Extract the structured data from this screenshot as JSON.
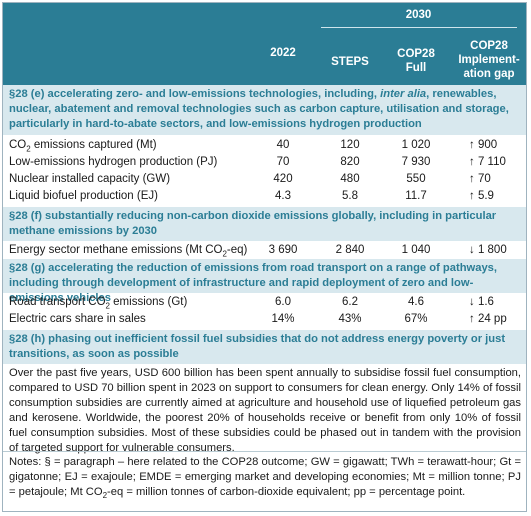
{
  "header": {
    "year_2030": "2030",
    "col_2022": "2022",
    "col_steps": "STEPS",
    "col_full_1": "COP28",
    "col_full_2": "Full",
    "col_gap_1": "COP28",
    "col_gap_2": "Implement-",
    "col_gap_3": "ation gap"
  },
  "sections": [
    {
      "heading_pre": "§28 (e) accelerating zero- and low-emissions technologies, including, ",
      "heading_italic": "inter alia",
      "heading_post": ", renewables, nuclear, abatement and removal technologies such as carbon capture, utilisation and storage, particularly in hard-to-abate sectors, and low-emissions hydrogen production",
      "rows": [
        {
          "label_pre": "CO",
          "label_sub": "2",
          "label_post": " emissions captured (Mt)",
          "v2022": "40",
          "steps": "120",
          "full": "1 020",
          "gap": "↑ 900"
        },
        {
          "label": "Low-emissions hydrogen production (PJ)",
          "v2022": "70",
          "steps": "820",
          "full": "7 930",
          "gap": "↑ 7 110"
        },
        {
          "label": "Nuclear installed capacity (GW)",
          "v2022": "420",
          "steps": "480",
          "full": "550",
          "gap": "↑ 70"
        },
        {
          "label": "Liquid biofuel production (EJ)",
          "v2022": "4.3",
          "steps": "5.8",
          "full": "11.7",
          "gap": "↑ 5.9"
        }
      ]
    },
    {
      "heading": "§28 (f) substantially reducing non-carbon dioxide emissions globally, including in particular methane emissions by 2030",
      "rows": [
        {
          "label_pre": "Energy sector methane emissions (Mt CO",
          "label_sub": "2",
          "label_post": "-eq)",
          "v2022": "3 690",
          "steps": "2 840",
          "full": "1 040",
          "gap": "↓ 1 800"
        }
      ]
    },
    {
      "heading": "§28 (g) accelerating the reduction of emissions from road transport on a range of pathways, including through development of infrastructure and rapid deployment of zero and low-emissions vehicles",
      "rows": [
        {
          "label_pre": "Road transport CO",
          "label_sub": "2",
          "label_post": " emissions (Gt)",
          "v2022": "6.0",
          "steps": "6.2",
          "full": "4.6",
          "gap": "↓ 1.6"
        },
        {
          "label": "Electric cars share in sales",
          "v2022": "14%",
          "steps": "43%",
          "full": "67%",
          "gap": "↑ 24 pp"
        }
      ]
    },
    {
      "heading": "§28 (h) phasing out inefficient fossil fuel subsidies that do not address energy poverty or just transitions, as soon as possible",
      "paragraph": "Over the past five years, USD 600 billion has been spent annually to subsidise fossil fuel consumption, compared to USD 70 billion spent in 2023 on support to consumers for clean energy. Only 14% of fossil consumption subsidies are currently aimed at agriculture and household use of liquefied petroleum gas and kerosene. Worldwide, the poorest 20% of households receive or benefit from only 10% of fossil fuel consumption subsidies. Most of these subsidies could be phased out in tandem with the provision of targeted support for vulnerable consumers."
    }
  ],
  "notes_pre": "Notes: § = paragraph – here related to the COP28 outcome; GW = gigawatt; TWh = terawatt-hour; Gt = gigatonne; EJ = exajoule; EMDE = emerging market and developing economies; Mt = million tonne; PJ = petajoule; Mt CO",
  "notes_sub": "2",
  "notes_post": "-eq = million tonnes of carbon-dioxide equivalent; pp = percentage point.",
  "colors": {
    "header_bg": "#2b7d95",
    "section_bg": "#d8e8ee",
    "section_text": "#2b7d95"
  }
}
